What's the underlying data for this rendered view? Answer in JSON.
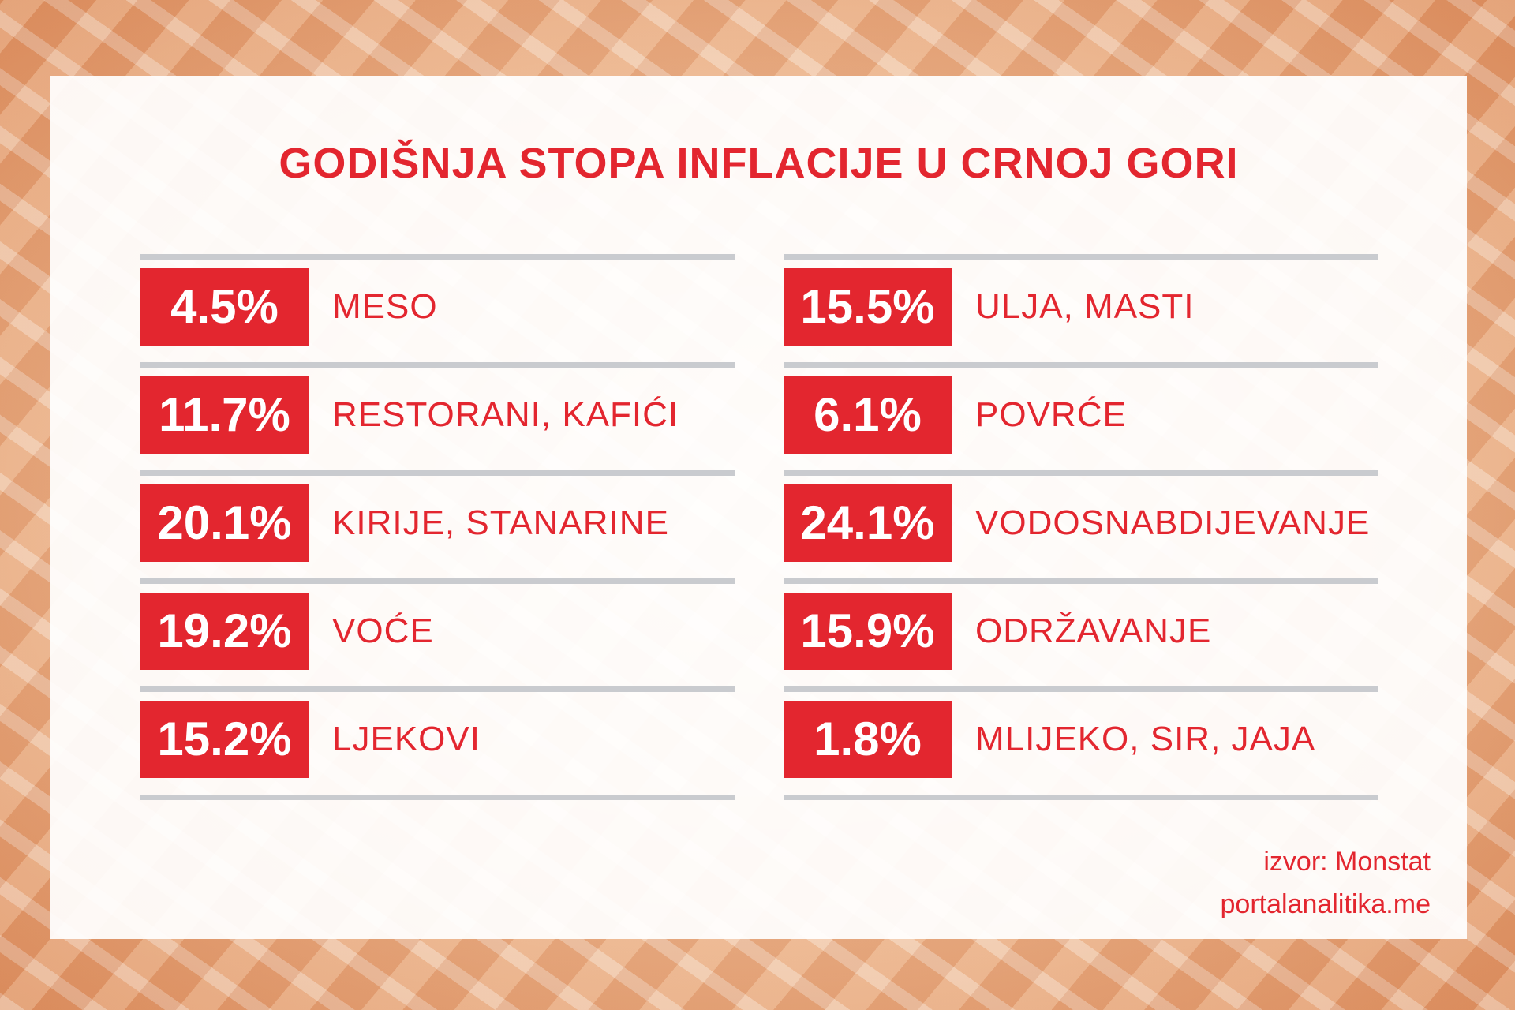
{
  "title": "GODIŠNJA STOPA INFLACIJE U CRNOJ GORI",
  "columns": [
    [
      {
        "value": "4.5%",
        "label": "MESO"
      },
      {
        "value": "11.7%",
        "label": "RESTORANI, KAFIĆI"
      },
      {
        "value": "20.1%",
        "label": "KIRIJE, STANARINE"
      },
      {
        "value": "19.2%",
        "label": "VOĆE"
      },
      {
        "value": "15.2%",
        "label": "LJEKOVI"
      }
    ],
    [
      {
        "value": "15.5%",
        "label": "ULJA, MASTI"
      },
      {
        "value": "6.1%",
        "label": "POVRĆE"
      },
      {
        "value": "24.1%",
        "label": "VODOSNABDIJEVANJE"
      },
      {
        "value": "15.9%",
        "label": "ODRŽAVANJE"
      },
      {
        "value": "1.8%",
        "label": "MLIJEKO, SIR, JAJA"
      }
    ]
  ],
  "source": [
    "izvor: Monstat",
    "portalanalitika.me"
  ]
}
